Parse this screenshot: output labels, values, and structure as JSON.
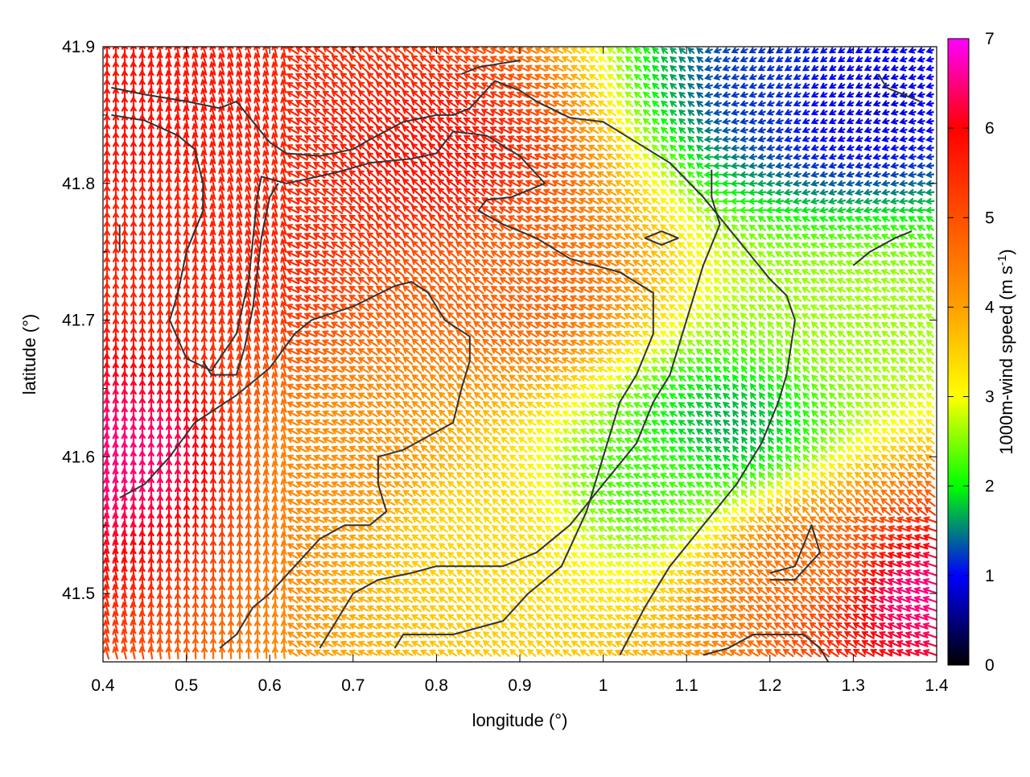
{
  "chart_data": {
    "type": "vector-field",
    "xlabel": "longitude (°)",
    "ylabel": "latitude (°)",
    "xlim": [
      0.4,
      1.4
    ],
    "ylim": [
      41.45,
      41.9
    ],
    "xticks": [
      "0.4",
      "0.5",
      "0.6",
      "0.7",
      "0.8",
      "0.9",
      "1",
      "1.1",
      "1.2",
      "1.3",
      "1.4"
    ],
    "yticks": [
      "41.5",
      "41.6",
      "41.7",
      "41.8",
      "41.9"
    ],
    "colorbar": {
      "label": "1000m-wind speed (m s",
      "label_sup": "-1",
      "label_end": ")",
      "range": [
        0,
        7
      ],
      "ticks": [
        "0",
        "1",
        "2",
        "3",
        "4",
        "5",
        "6",
        "7"
      ],
      "palette": [
        "#000000",
        "#0000ff",
        "#00ff00",
        "#ffff00",
        "#ffa000",
        "#ff5000",
        "#ff0000",
        "#ff00ff"
      ]
    },
    "grid": false,
    "wind_field_regions": [
      {
        "lon": 0.45,
        "lat": 41.85,
        "speed": 5.8
      },
      {
        "lon": 0.55,
        "lat": 41.75,
        "speed": 5.6
      },
      {
        "lon": 0.8,
        "lat": 41.82,
        "speed": 5.8
      },
      {
        "lon": 0.9,
        "lat": 41.72,
        "speed": 4.8
      },
      {
        "lon": 0.7,
        "lat": 41.6,
        "speed": 4.2
      },
      {
        "lon": 0.85,
        "lat": 41.55,
        "speed": 3.4
      },
      {
        "lon": 1.05,
        "lat": 41.58,
        "speed": 2.2
      },
      {
        "lon": 1.15,
        "lat": 41.62,
        "speed": 1.6
      },
      {
        "lon": 1.22,
        "lat": 41.87,
        "speed": 1.2
      },
      {
        "lon": 1.3,
        "lat": 41.86,
        "speed": 0.8
      },
      {
        "lon": 1.3,
        "lat": 41.7,
        "speed": 2.6
      },
      {
        "lon": 1.25,
        "lat": 41.52,
        "speed": 4.6
      },
      {
        "lon": 1.37,
        "lat": 41.5,
        "speed": 6.6
      },
      {
        "lon": 0.42,
        "lat": 41.6,
        "speed": 6.5
      }
    ],
    "contours": [
      [
        [
          0.41,
          41.87
        ],
        [
          0.45,
          41.865
        ],
        [
          0.5,
          41.86
        ],
        [
          0.54,
          41.855
        ],
        [
          0.56,
          41.86
        ],
        [
          0.58,
          41.845
        ],
        [
          0.6,
          41.83
        ],
        [
          0.62,
          41.822
        ],
        [
          0.66,
          41.82
        ],
        [
          0.7,
          41.825
        ],
        [
          0.72,
          41.832
        ],
        [
          0.76,
          41.845
        ],
        [
          0.8,
          41.85
        ],
        [
          0.82,
          41.85
        ],
        [
          0.84,
          41.855
        ],
        [
          0.87,
          41.875
        ],
        [
          0.9,
          41.868
        ],
        [
          0.92,
          41.86
        ],
        [
          0.96,
          41.848
        ],
        [
          1.0,
          41.845
        ],
        [
          1.04,
          41.83
        ],
        [
          1.08,
          41.815
        ],
        [
          1.12,
          41.79
        ],
        [
          1.16,
          41.76
        ],
        [
          1.18,
          41.745
        ],
        [
          1.2,
          41.73
        ],
        [
          1.22,
          41.718
        ],
        [
          1.23,
          41.7
        ],
        [
          1.22,
          41.66
        ],
        [
          1.21,
          41.64
        ],
        [
          1.19,
          41.61
        ],
        [
          1.16,
          41.58
        ],
        [
          1.12,
          41.55
        ],
        [
          1.08,
          41.52
        ],
        [
          1.05,
          41.49
        ],
        [
          1.02,
          41.455
        ]
      ],
      [
        [
          0.41,
          41.85
        ],
        [
          0.45,
          41.846
        ],
        [
          0.49,
          41.835
        ],
        [
          0.51,
          41.825
        ],
        [
          0.52,
          41.8
        ],
        [
          0.52,
          41.78
        ],
        [
          0.5,
          41.75
        ],
        [
          0.49,
          41.72
        ],
        [
          0.48,
          41.7
        ],
        [
          0.5,
          41.672
        ],
        [
          0.53,
          41.663
        ],
        [
          0.56,
          41.69
        ],
        [
          0.575,
          41.73
        ],
        [
          0.585,
          41.79
        ],
        [
          0.59,
          41.805
        ],
        [
          0.62,
          41.8
        ],
        [
          0.68,
          41.808
        ],
        [
          0.72,
          41.815
        ],
        [
          0.77,
          41.818
        ],
        [
          0.8,
          41.822
        ],
        [
          0.82,
          41.838
        ],
        [
          0.86,
          41.835
        ],
        [
          0.9,
          41.82
        ],
        [
          0.93,
          41.8
        ],
        [
          0.89,
          41.79
        ],
        [
          0.86,
          41.788
        ],
        [
          0.85,
          41.78
        ],
        [
          0.88,
          41.77
        ],
        [
          0.92,
          41.76
        ],
        [
          0.96,
          41.745
        ],
        [
          1.02,
          41.735
        ],
        [
          1.06,
          41.72
        ],
        [
          1.06,
          41.69
        ],
        [
          1.04,
          41.66
        ],
        [
          1.02,
          41.64
        ],
        [
          1.0,
          41.6
        ],
        [
          0.98,
          41.56
        ],
        [
          0.95,
          41.52
        ],
        [
          0.91,
          41.5
        ],
        [
          0.88,
          41.48
        ],
        [
          0.82,
          41.47
        ],
        [
          0.76,
          41.47
        ],
        [
          0.75,
          41.46
        ]
      ],
      [
        [
          0.42,
          41.57
        ],
        [
          0.45,
          41.58
        ],
        [
          0.48,
          41.6
        ],
        [
          0.51,
          41.625
        ],
        [
          0.56,
          41.645
        ],
        [
          0.6,
          41.665
        ],
        [
          0.63,
          41.69
        ],
        [
          0.65,
          41.7
        ],
        [
          0.7,
          41.71
        ],
        [
          0.75,
          41.725
        ],
        [
          0.77,
          41.728
        ],
        [
          0.79,
          41.72
        ],
        [
          0.81,
          41.7
        ],
        [
          0.84,
          41.688
        ],
        [
          0.84,
          41.67
        ],
        [
          0.83,
          41.65
        ],
        [
          0.82,
          41.625
        ],
        [
          0.79,
          41.615
        ],
        [
          0.76,
          41.605
        ],
        [
          0.73,
          41.6
        ],
        [
          0.73,
          41.58
        ],
        [
          0.74,
          41.56
        ],
        [
          0.72,
          41.55
        ],
        [
          0.69,
          41.55
        ],
        [
          0.66,
          41.54
        ],
        [
          0.63,
          41.52
        ],
        [
          0.6,
          41.5
        ],
        [
          0.58,
          41.49
        ],
        [
          0.56,
          41.47
        ],
        [
          0.54,
          41.46
        ]
      ],
      [
        [
          0.66,
          41.46
        ],
        [
          0.68,
          41.48
        ],
        [
          0.7,
          41.5
        ],
        [
          0.73,
          41.51
        ],
        [
          0.77,
          41.515
        ],
        [
          0.8,
          41.52
        ],
        [
          0.84,
          41.52
        ],
        [
          0.88,
          41.52
        ],
        [
          0.92,
          41.53
        ],
        [
          0.96,
          41.55
        ],
        [
          1.0,
          41.58
        ],
        [
          1.04,
          41.61
        ],
        [
          1.06,
          41.64
        ],
        [
          1.08,
          41.66
        ],
        [
          1.1,
          41.7
        ],
        [
          1.12,
          41.74
        ],
        [
          1.14,
          41.77
        ],
        [
          1.13,
          41.79
        ],
        [
          1.13,
          41.81
        ]
      ],
      [
        [
          0.52,
          41.67
        ],
        [
          0.53,
          41.66
        ],
        [
          0.56,
          41.66
        ],
        [
          0.57,
          41.68
        ],
        [
          0.58,
          41.71
        ],
        [
          0.59,
          41.76
        ],
        [
          0.6,
          41.79
        ],
        [
          0.61,
          41.8
        ]
      ],
      [
        [
          1.2,
          41.51
        ],
        [
          1.23,
          41.51
        ],
        [
          1.26,
          41.53
        ],
        [
          1.25,
          41.55
        ],
        [
          1.23,
          41.52
        ],
        [
          1.2,
          41.515
        ]
      ],
      [
        [
          1.12,
          41.455
        ],
        [
          1.15,
          41.46
        ],
        [
          1.18,
          41.47
        ],
        [
          1.24,
          41.47
        ],
        [
          1.26,
          41.46
        ],
        [
          1.27,
          41.45
        ]
      ],
      [
        [
          1.05,
          41.76
        ],
        [
          1.07,
          41.765
        ],
        [
          1.09,
          41.76
        ],
        [
          1.07,
          41.755
        ],
        [
          1.05,
          41.76
        ]
      ],
      [
        [
          1.33,
          41.88
        ],
        [
          1.34,
          41.87
        ],
        [
          1.38,
          41.86
        ]
      ],
      [
        [
          0.83,
          41.88
        ],
        [
          0.85,
          41.885
        ],
        [
          0.9,
          41.89
        ]
      ],
      [
        [
          1.3,
          41.74
        ],
        [
          1.32,
          41.75
        ],
        [
          1.35,
          41.76
        ],
        [
          1.37,
          41.765
        ]
      ],
      [
        [
          0.42,
          41.75
        ],
        [
          0.42,
          41.77
        ]
      ]
    ]
  }
}
